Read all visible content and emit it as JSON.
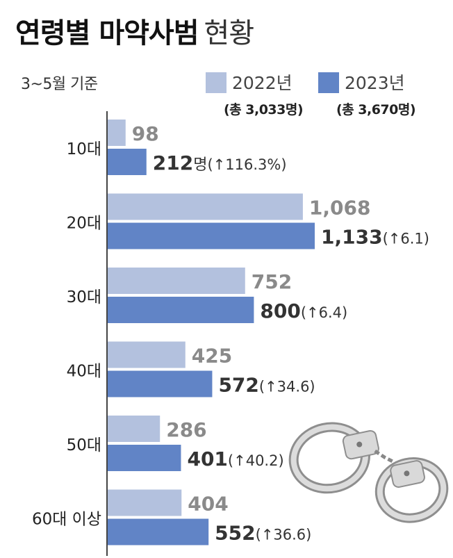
{
  "title": {
    "bold": "연령별 마약사범",
    "light": "현황"
  },
  "basis": "3~5월 기준",
  "colors": {
    "y2022": "#b3c1de",
    "y2023": "#6184c6",
    "axis": "#444444",
    "label2022": "#8a8a8a"
  },
  "legend": [
    {
      "name": "2022년",
      "total": "(총 3,033명)"
    },
    {
      "name": "2023년",
      "total": "(총 3,670명)"
    }
  ],
  "chart_data": {
    "type": "bar",
    "orientation": "horizontal",
    "categories": [
      "10대",
      "20대",
      "30대",
      "40대",
      "50대",
      "60대 이상"
    ],
    "series": [
      {
        "name": "2022년",
        "values": [
          98,
          1068,
          752,
          425,
          286,
          404
        ],
        "labels": [
          "98",
          "1,068",
          "752",
          "425",
          "286",
          "404"
        ]
      },
      {
        "name": "2023년",
        "values": [
          212,
          1133,
          800,
          572,
          401,
          552
        ],
        "labels": [
          "212",
          "1,133",
          "800",
          "572",
          "401",
          "552"
        ],
        "unit_labels": [
          "명",
          "",
          "",
          "",
          "",
          ""
        ],
        "change_labels": [
          "(↑116.3%)",
          "(↑6.1)",
          "(↑6.4)",
          "(↑34.6)",
          "(↑40.2)",
          "(↑36.6)"
        ]
      }
    ],
    "xlim": [
      0,
      1133
    ],
    "grid": false
  },
  "icon": "handcuffs-icon"
}
